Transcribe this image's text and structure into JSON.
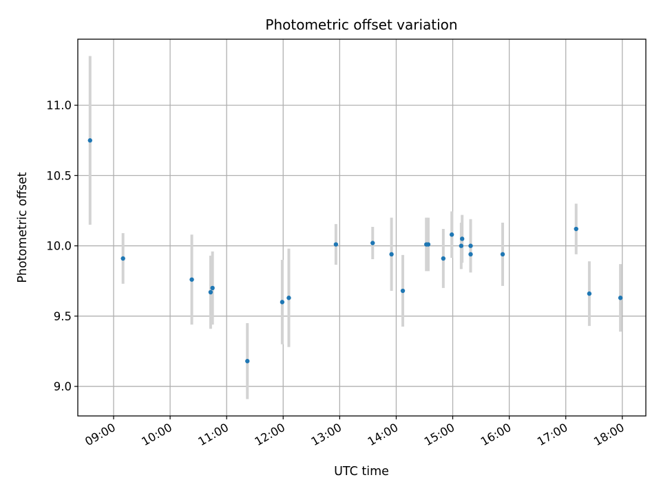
{
  "chart_data": {
    "type": "scatter",
    "title": "Photometric offset variation",
    "xlabel": "UTC time",
    "ylabel": "Photometric offset",
    "grid": true,
    "xlim": [
      "08:22",
      "18:25"
    ],
    "ylim": [
      8.79,
      11.47
    ],
    "x_ticks": [
      "09:00",
      "10:00",
      "11:00",
      "12:00",
      "13:00",
      "14:00",
      "15:00",
      "16:00",
      "17:00",
      "18:00"
    ],
    "y_ticks": [
      9.0,
      9.5,
      10.0,
      10.5,
      11.0
    ],
    "y_tick_labels": [
      "9.0",
      "9.5",
      "10.0",
      "10.5",
      "11.0"
    ],
    "point_color": "#1f77b4",
    "errorbar_color": "#d3d3d3",
    "points": [
      {
        "x": "08:35",
        "y": 10.75,
        "err": 0.6
      },
      {
        "x": "09:10",
        "y": 9.91,
        "err": 0.18
      },
      {
        "x": "10:23",
        "y": 9.76,
        "err": 0.32
      },
      {
        "x": "10:43",
        "y": 9.67,
        "err": 0.26
      },
      {
        "x": "10:45",
        "y": 9.7,
        "err": 0.26
      },
      {
        "x": "11:22",
        "y": 9.18,
        "err": 0.27
      },
      {
        "x": "11:59",
        "y": 9.6,
        "err": 0.3
      },
      {
        "x": "12:06",
        "y": 9.63,
        "err": 0.35
      },
      {
        "x": "12:56",
        "y": 10.01,
        "err": 0.145
      },
      {
        "x": "13:35",
        "y": 10.02,
        "err": 0.115
      },
      {
        "x": "13:55",
        "y": 9.94,
        "err": 0.26
      },
      {
        "x": "14:07",
        "y": 9.68,
        "err": 0.255
      },
      {
        "x": "14:32",
        "y": 10.01,
        "err": 0.19
      },
      {
        "x": "14:34",
        "y": 10.01,
        "err": 0.19
      },
      {
        "x": "14:50",
        "y": 9.91,
        "err": 0.21
      },
      {
        "x": "14:59",
        "y": 10.08,
        "err": 0.165
      },
      {
        "x": "15:09",
        "y": 10.0,
        "err": 0.165
      },
      {
        "x": "15:10",
        "y": 10.05,
        "err": 0.17
      },
      {
        "x": "15:19",
        "y": 10.0,
        "err": 0.19
      },
      {
        "x": "15:19",
        "y": 9.94,
        "err": 0.12
      },
      {
        "x": "15:53",
        "y": 9.94,
        "err": 0.225
      },
      {
        "x": "17:11",
        "y": 10.12,
        "err": 0.18
      },
      {
        "x": "17:25",
        "y": 9.66,
        "err": 0.23
      },
      {
        "x": "17:58",
        "y": 9.63,
        "err": 0.24
      }
    ]
  }
}
